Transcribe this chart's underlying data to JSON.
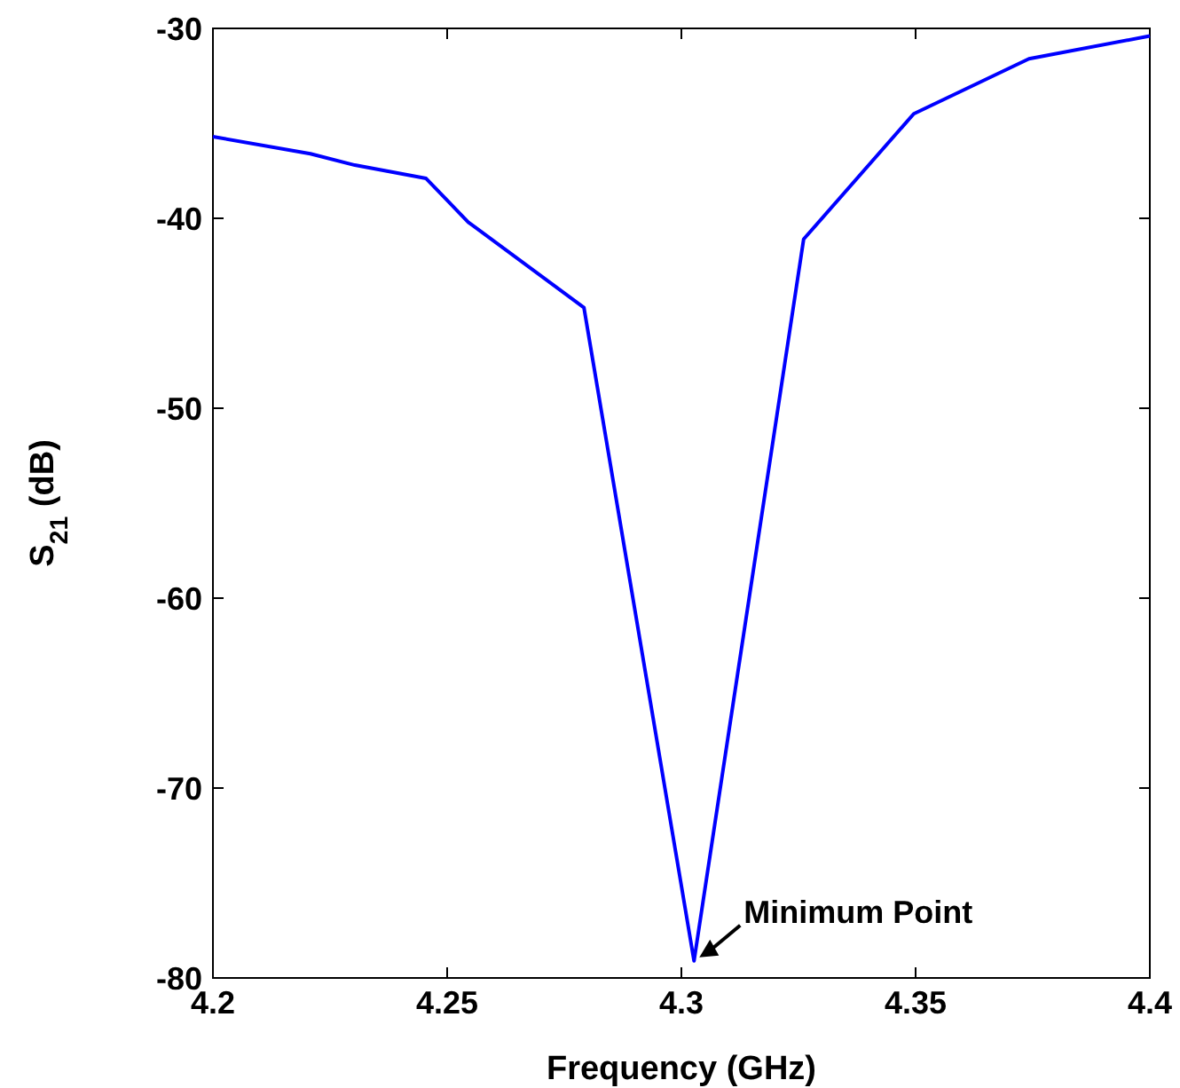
{
  "chart_data": {
    "type": "line",
    "xlabel": "Frequency (GHz)",
    "ylabel": "S$_{21}$ (dB)",
    "x": [
      4.2,
      4.2208,
      4.2303,
      4.2455,
      4.2545,
      4.2792,
      4.3027,
      4.3261,
      4.3496,
      4.3742,
      4.4
    ],
    "series": [
      {
        "color": "#0000ff",
        "values": [
          -35.7,
          -36.6,
          -37.2,
          -37.9,
          -40.2,
          -44.7,
          -79.1,
          -41.1,
          -34.5,
          -31.6,
          -30.4
        ]
      }
    ],
    "xlim": [
      4.2,
      4.4
    ],
    "xticks": [
      4.2,
      4.25,
      4.3,
      4.35,
      4.4
    ],
    "ylim": [
      -80,
      -30
    ],
    "yticks": [
      -80,
      -70,
      -60,
      -50,
      -40,
      -30
    ],
    "grid": false,
    "marker": "none",
    "line_style": "solid",
    "annotations": [
      {
        "text": "Minimum Point",
        "x": 4.3027,
        "y": -79.1
      }
    ]
  }
}
